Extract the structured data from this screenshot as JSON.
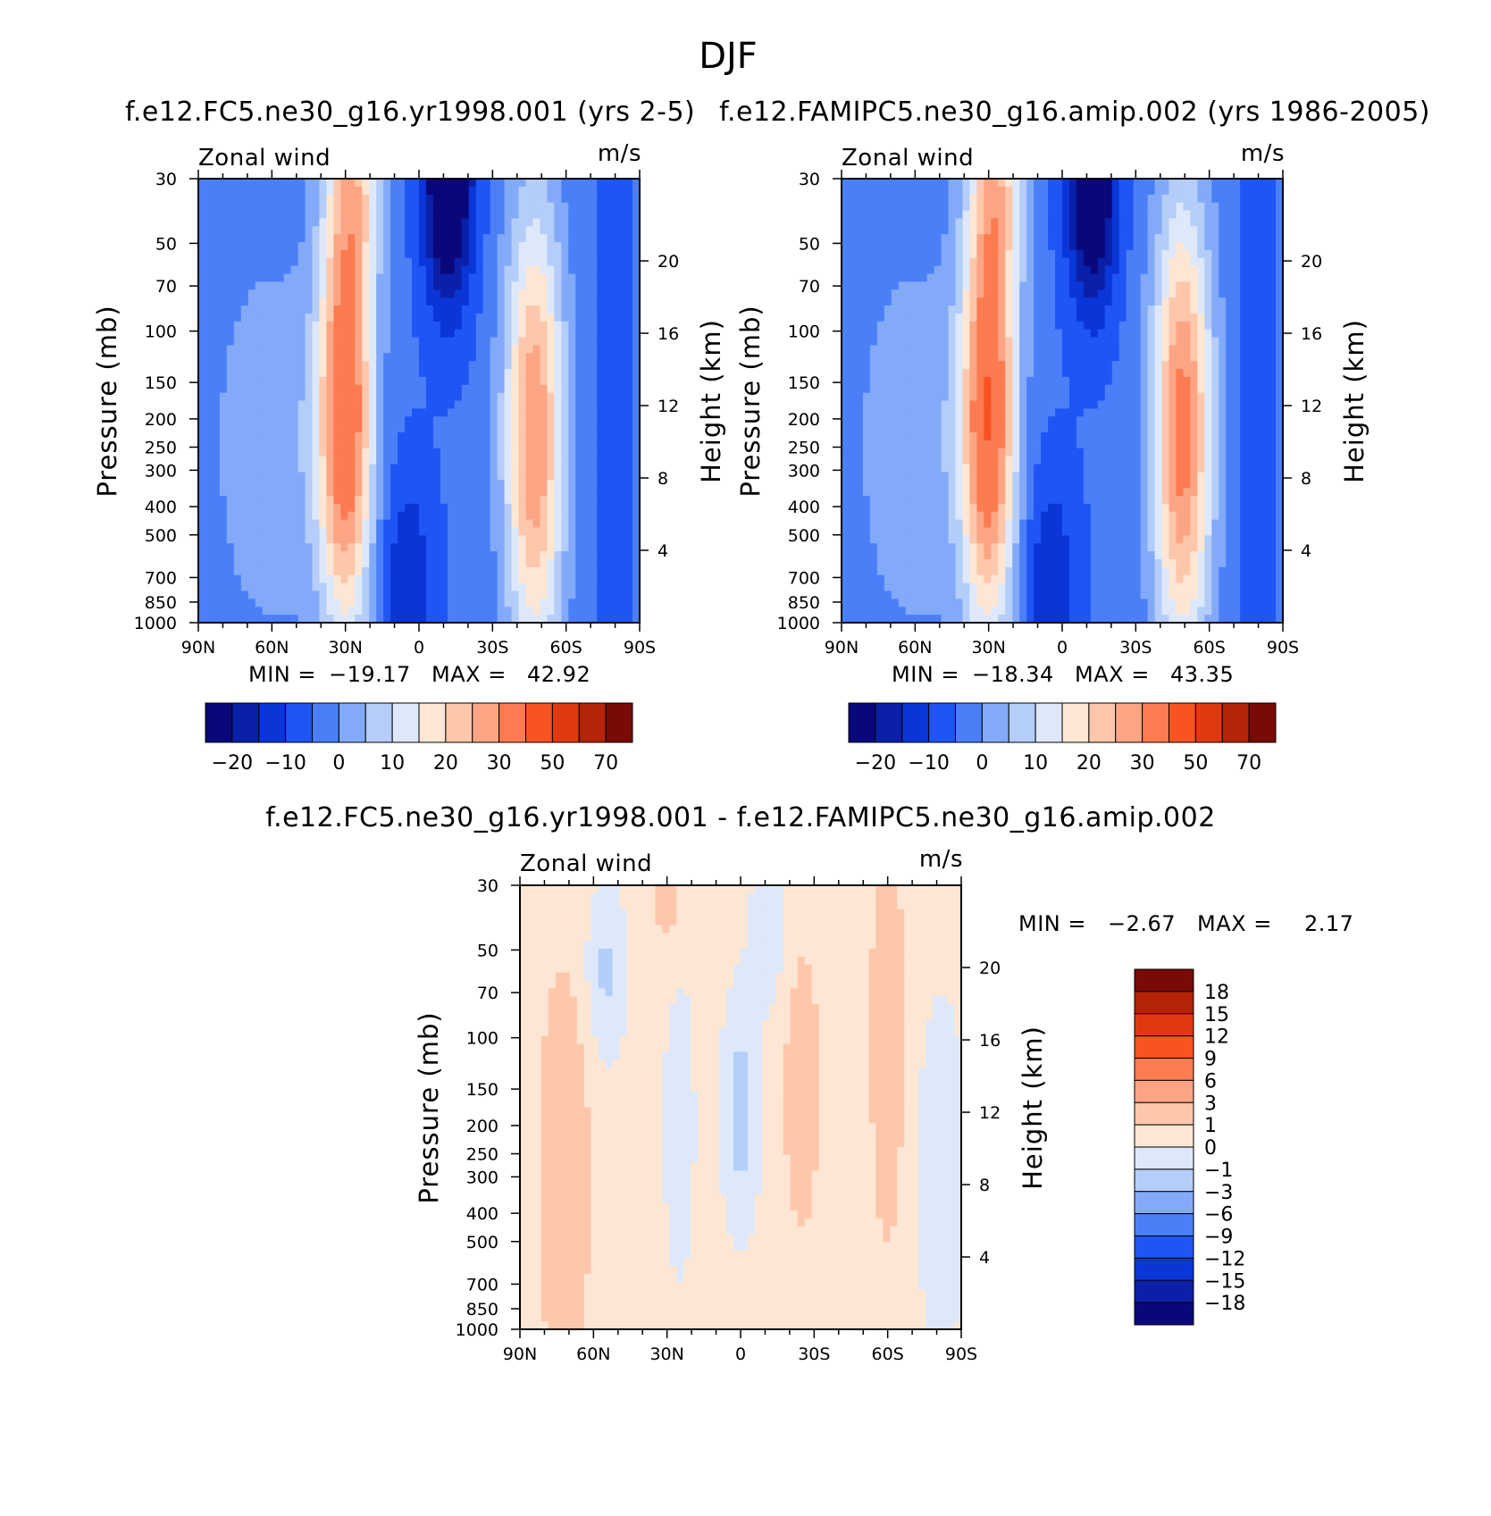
{
  "figure": {
    "title": "DJF"
  },
  "palette": {
    "wind_levels": [
      -25,
      -20,
      -15,
      -10,
      -5,
      0,
      5,
      10,
      15,
      20,
      25,
      30,
      40,
      50,
      60,
      70,
      80
    ],
    "wind_colors": [
      "#08087a",
      "#0b20a8",
      "#0a36d8",
      "#1f55f5",
      "#4a7ff7",
      "#82aaf8",
      "#b4cdf9",
      "#dde9fb",
      "#fde6d3",
      "#fdc7ab",
      "#fca585",
      "#fc7b50",
      "#f95322",
      "#e03912",
      "#b52309",
      "#7a0a05"
    ],
    "diff_levels": [
      -21,
      -18,
      -15,
      -12,
      -9,
      -6,
      -3,
      -1,
      0,
      1,
      3,
      6,
      9,
      12,
      15,
      18,
      21
    ],
    "diff_colors": [
      "#08087a",
      "#0b20a8",
      "#0a36d8",
      "#1f55f5",
      "#4a7ff7",
      "#82aaf8",
      "#b4cdf9",
      "#dde9fb",
      "#fde6d3",
      "#fdc7ab",
      "#fca585",
      "#fc7b50",
      "#f95322",
      "#e03912",
      "#b52309",
      "#7a0a05"
    ]
  },
  "chart_data": [
    {
      "type": "heatmap",
      "id": "case",
      "title": "f.e12.FC5.ne30_g16.yr1998.001 (yrs 2-5)",
      "corner_left": "Zonal wind",
      "corner_right": "m/s",
      "ylabel": "Pressure (mb)",
      "ylabel_right": "Height (km)",
      "x_ticks": [
        "90N",
        "60N",
        "30N",
        "0",
        "30S",
        "60S",
        "90S"
      ],
      "y_ticks": [
        "30",
        "50",
        "70",
        "100",
        "150",
        "200",
        "250",
        "300",
        "400",
        "500",
        "700",
        "850",
        "1000"
      ],
      "y_ticks_right": [
        "4",
        "8",
        "12",
        "16",
        "20"
      ],
      "x_range": [
        90,
        -90
      ],
      "y_range_mb": [
        1000,
        30
      ],
      "min": -19.17,
      "max": 42.92,
      "min_label": "MIN =",
      "max_label": "MAX =",
      "min_text": "−19.17",
      "max_text": "42.92",
      "colorbar_labels": [
        "−20",
        "−10",
        "0",
        "10",
        "20",
        "30",
        "50",
        "70"
      ],
      "features": [
        {
          "lat": 30,
          "p": 190,
          "amp": 42,
          "wlat": 11,
          "wz": 3.1
        },
        {
          "lat": -47,
          "p": 230,
          "amp": 34,
          "wlat": 12,
          "wz": 3.3
        },
        {
          "lat": 26,
          "p": 30,
          "amp": 18,
          "wlat": 11,
          "wz": 1.5
        },
        {
          "lat": -12,
          "p": 30,
          "amp": -29,
          "wlat": 10,
          "wz": 1.8
        },
        {
          "lat": 5,
          "p": 700,
          "amp": -10,
          "wlat": 11,
          "wz": 1.6
        }
      ]
    },
    {
      "type": "heatmap",
      "id": "control",
      "title": "f.e12.FAMIPC5.ne30_g16.amip.002 (yrs 1986-2005)",
      "corner_left": "Zonal wind",
      "corner_right": "m/s",
      "ylabel": "Pressure (mb)",
      "ylabel_right": "Height (km)",
      "x_ticks": [
        "90N",
        "60N",
        "30N",
        "0",
        "30S",
        "60S",
        "90S"
      ],
      "y_ticks": [
        "30",
        "50",
        "70",
        "100",
        "150",
        "200",
        "250",
        "300",
        "400",
        "500",
        "700",
        "850",
        "1000"
      ],
      "y_ticks_right": [
        "4",
        "8",
        "12",
        "16",
        "20"
      ],
      "x_range": [
        90,
        -90
      ],
      "y_range_mb": [
        1000,
        30
      ],
      "min": -18.34,
      "max": 43.35,
      "min_label": "MIN =",
      "max_label": "MAX =",
      "min_text": "−18.34",
      "max_text": "43.35",
      "colorbar_labels": [
        "−20",
        "−10",
        "0",
        "10",
        "20",
        "30",
        "50",
        "70"
      ],
      "features": [
        {
          "lat": 30,
          "p": 190,
          "amp": 43,
          "wlat": 11,
          "wz": 3.1
        },
        {
          "lat": -49,
          "p": 220,
          "amp": 37,
          "wlat": 12,
          "wz": 3.3
        },
        {
          "lat": 26,
          "p": 30,
          "amp": 18,
          "wlat": 11,
          "wz": 1.5
        },
        {
          "lat": -12,
          "p": 30,
          "amp": -28,
          "wlat": 10,
          "wz": 1.8
        },
        {
          "lat": 5,
          "p": 700,
          "amp": -10,
          "wlat": 11,
          "wz": 1.6
        }
      ]
    },
    {
      "type": "heatmap",
      "id": "diff",
      "title": "f.e12.FC5.ne30_g16.yr1998.001 - f.e12.FAMIPC5.ne30_g16.amip.002",
      "corner_left": "Zonal wind",
      "corner_right": "m/s",
      "ylabel": "Pressure (mb)",
      "ylabel_right": "Height (km)",
      "x_ticks": [
        "90N",
        "60N",
        "30N",
        "0",
        "30S",
        "60S",
        "90S"
      ],
      "y_ticks": [
        "30",
        "50",
        "70",
        "100",
        "150",
        "200",
        "250",
        "300",
        "400",
        "500",
        "700",
        "850",
        "1000"
      ],
      "y_ticks_right": [
        "4",
        "8",
        "12",
        "16",
        "20"
      ],
      "x_range": [
        90,
        -90
      ],
      "y_range_mb": [
        1000,
        30
      ],
      "min": -2.67,
      "max": 2.17,
      "min_label": "MIN =",
      "max_label": "MAX =",
      "min_text": "−2.67",
      "max_text": "2.17",
      "colorbar_labels": [
        "18",
        "15",
        "12",
        "9",
        "6",
        "3",
        "1",
        "0",
        "−1",
        "−3",
        "−6",
        "−9",
        "−12",
        "−15",
        "−18"
      ],
      "features": [
        {
          "lat": 72,
          "p": 300,
          "amp": 1.9,
          "wlat": 10,
          "wz": 2.8
        },
        {
          "lat": 55,
          "p": 60,
          "amp": -1.6,
          "wlat": 8,
          "wz": 1.2
        },
        {
          "lat": 25,
          "p": 200,
          "amp": -0.9,
          "wlat": 7,
          "wz": 2.5
        },
        {
          "lat": 0,
          "p": 180,
          "amp": -2.0,
          "wlat": 7,
          "wz": 1.6
        },
        {
          "lat": 30,
          "p": 30,
          "amp": 1.3,
          "wlat": 6,
          "wz": 1.0
        },
        {
          "lat": -25,
          "p": 150,
          "amp": 1.6,
          "wlat": 7,
          "wz": 2.0
        },
        {
          "lat": -60,
          "p": 100,
          "amp": 1.6,
          "wlat": 7,
          "wz": 3.0
        },
        {
          "lat": -82,
          "p": 300,
          "amp": -1.2,
          "wlat": 10,
          "wz": 2.5
        },
        {
          "lat": -12,
          "p": 40,
          "amp": -1.0,
          "wlat": 8,
          "wz": 1.3
        }
      ]
    }
  ]
}
